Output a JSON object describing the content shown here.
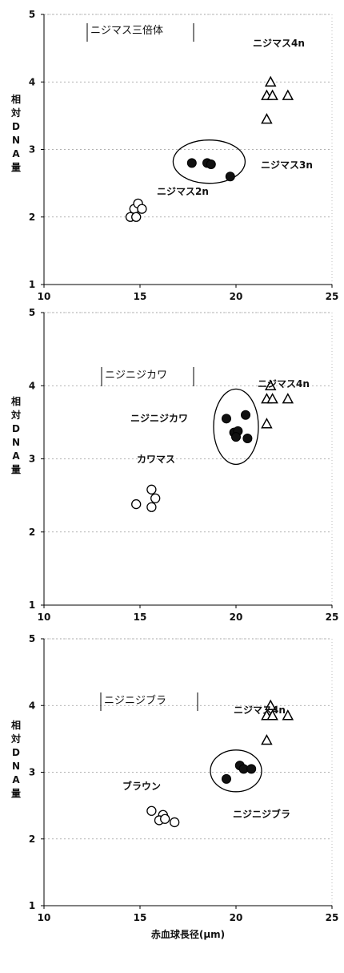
{
  "chart_data": [
    {
      "type": "scatter",
      "title": "ニジマス三倍体",
      "ylabel": "相対DNA量",
      "xlabel": "",
      "xlim": [
        10,
        25
      ],
      "ylim": [
        1,
        5
      ],
      "xticks": [
        10,
        15,
        20,
        25
      ],
      "yticks": [
        1,
        2,
        3,
        4,
        5
      ],
      "grid": "horizontal dotted",
      "series": [
        {
          "name": "ニジマス2n",
          "marker": "open-circle",
          "points": [
            [
              14.5,
              2.0
            ],
            [
              14.7,
              2.12
            ],
            [
              14.9,
              2.2
            ],
            [
              15.1,
              2.12
            ],
            [
              14.8,
              2.0
            ]
          ]
        },
        {
          "name": "ニジマス3n",
          "marker": "filled-circle",
          "points": [
            [
              17.7,
              2.8
            ],
            [
              18.5,
              2.8
            ],
            [
              18.7,
              2.78
            ],
            [
              19.7,
              2.6
            ]
          ]
        },
        {
          "name": "ニジマス4n",
          "marker": "triangle",
          "points": [
            [
              21.8,
              4.0
            ],
            [
              21.6,
              3.8
            ],
            [
              21.9,
              3.8
            ],
            [
              22.7,
              3.8
            ],
            [
              21.6,
              3.45
            ]
          ]
        }
      ],
      "annotations": [
        "ニジマス2n",
        "ニジマス3n",
        "ニジマス4n"
      ],
      "ellipse_around": "ニジマス3n"
    },
    {
      "type": "scatter",
      "title": "ニジニジカワ",
      "ylabel": "相対DNA量",
      "xlabel": "",
      "xlim": [
        10,
        25
      ],
      "ylim": [
        1,
        5
      ],
      "xticks": [
        10,
        15,
        20,
        25
      ],
      "yticks": [
        1,
        2,
        3,
        4,
        5
      ],
      "grid": "horizontal dotted",
      "series": [
        {
          "name": "カワマス",
          "marker": "open-circle",
          "points": [
            [
              14.8,
              2.38
            ],
            [
              15.6,
              2.58
            ],
            [
              15.8,
              2.46
            ],
            [
              15.6,
              2.34
            ]
          ]
        },
        {
          "name": "ニジニジカワ",
          "marker": "filled-circle",
          "points": [
            [
              19.5,
              3.55
            ],
            [
              20.5,
              3.6
            ],
            [
              19.9,
              3.36
            ],
            [
              20.1,
              3.38
            ],
            [
              20.0,
              3.3
            ],
            [
              20.6,
              3.28
            ]
          ]
        },
        {
          "name": "ニジマス4n",
          "marker": "triangle",
          "points": [
            [
              21.8,
              4.0
            ],
            [
              21.6,
              3.82
            ],
            [
              21.9,
              3.82
            ],
            [
              22.7,
              3.82
            ],
            [
              21.6,
              3.48
            ]
          ]
        }
      ],
      "annotations": [
        "カワマス",
        "ニジニジカワ",
        "ニジマス4n"
      ],
      "ellipse_around": "ニジニジカワ"
    },
    {
      "type": "scatter",
      "title": "ニジニジブラ",
      "ylabel": "相対DNA量",
      "xlabel": "赤血球長径(μm)",
      "xlim": [
        10,
        25
      ],
      "ylim": [
        1,
        5
      ],
      "xticks": [
        10,
        15,
        20,
        25
      ],
      "yticks": [
        1,
        2,
        3,
        4,
        5
      ],
      "grid": "horizontal dotted",
      "series": [
        {
          "name": "ブラウン",
          "marker": "open-circle",
          "points": [
            [
              15.6,
              2.42
            ],
            [
              16.2,
              2.36
            ],
            [
              16.0,
              2.28
            ],
            [
              16.3,
              2.3
            ],
            [
              16.8,
              2.25
            ]
          ]
        },
        {
          "name": "ニジニジブラ",
          "marker": "filled-circle",
          "points": [
            [
              19.5,
              2.9
            ],
            [
              20.2,
              3.1
            ],
            [
              20.4,
              3.05
            ],
            [
              20.8,
              3.05
            ]
          ]
        },
        {
          "name": "ニジマス4n",
          "marker": "triangle",
          "points": [
            [
              21.8,
              4.0
            ],
            [
              21.6,
              3.85
            ],
            [
              21.9,
              3.85
            ],
            [
              22.7,
              3.85
            ],
            [
              21.6,
              3.48
            ]
          ]
        }
      ],
      "annotations": [
        "ブラウン",
        "ニジニジブラ",
        "ニジマス4n"
      ],
      "ellipse_around": "ニジニジブラ"
    }
  ]
}
